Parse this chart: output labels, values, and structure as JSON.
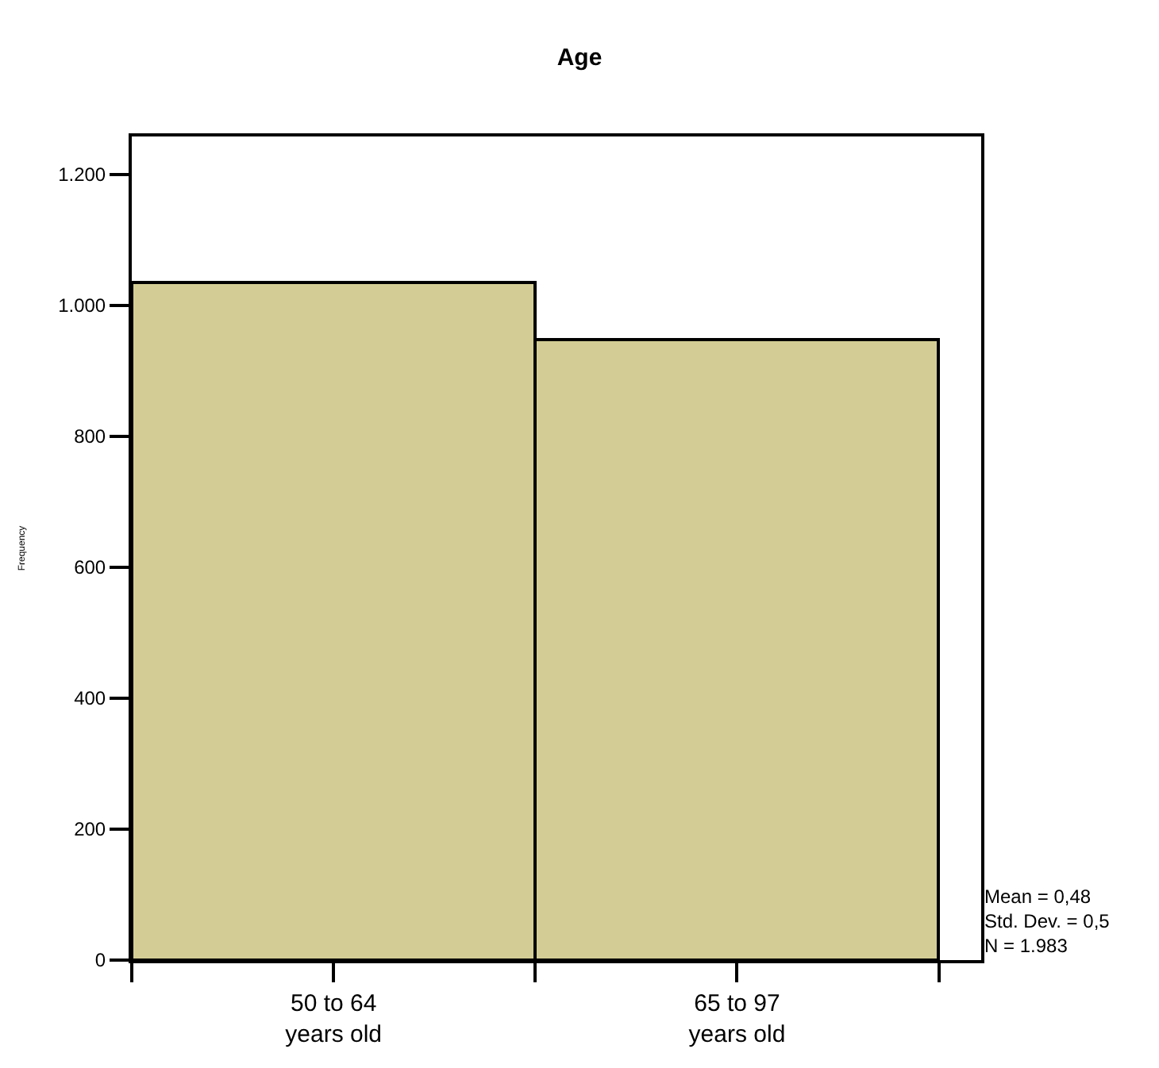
{
  "chart_data": {
    "type": "bar",
    "title": "Age",
    "ylabel": "Frequency",
    "categories": [
      "50 to 64\nyears old",
      "65 to 97\nyears old"
    ],
    "values": [
      1036,
      947
    ],
    "color": "#d3cd95",
    "ylim": [
      0,
      1258
    ],
    "yticks": [
      0,
      200,
      400,
      600,
      800,
      {
        "value": 1000,
        "label": "1.000"
      },
      {
        "value": 1200,
        "label": "1.200"
      }
    ],
    "annotations": [
      "Mean = 0,48",
      "Std. Dev. = 0,5",
      "N = 1.983"
    ]
  }
}
